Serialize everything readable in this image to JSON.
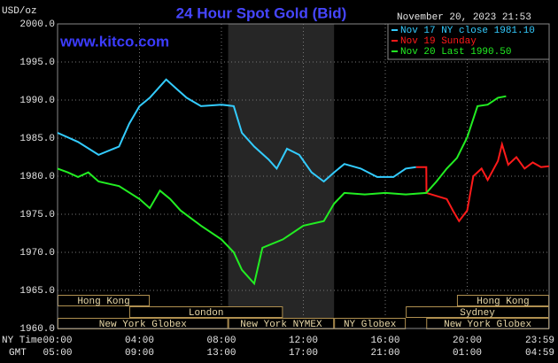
{
  "chart_data": {
    "type": "line",
    "title": "24 Hour Spot Gold (Bid)",
    "subtitle": "www.kitco.com",
    "y_label": "USD/oz",
    "x_label": "NY Time",
    "x2_label": "GMT",
    "timestamp": "November 20, 2023 21:53",
    "ylim": [
      1960,
      2000
    ],
    "yticks": [
      {
        "value": 1960,
        "label": "1960.0"
      },
      {
        "value": 1965,
        "label": "1965.0"
      },
      {
        "value": 1970,
        "label": "1970.0"
      },
      {
        "value": 1975,
        "label": "1975.0"
      },
      {
        "value": 1980,
        "label": "1980.0"
      },
      {
        "value": 1985,
        "label": "1985.0"
      },
      {
        "value": 1990,
        "label": "1990.0"
      },
      {
        "value": 1995,
        "label": "1995.0"
      },
      {
        "value": 2000,
        "label": "2000.0"
      }
    ],
    "xlim": [
      0,
      24
    ],
    "xticks": [
      {
        "value": 0,
        "label": "00:00"
      },
      {
        "value": 4,
        "label": "04:00"
      },
      {
        "value": 8,
        "label": "08:00"
      },
      {
        "value": 12,
        "label": "12:00"
      },
      {
        "value": 16,
        "label": "16:00"
      },
      {
        "value": 20,
        "label": "20:00"
      },
      {
        "value": 23.98,
        "label": "23:59"
      }
    ],
    "x2ticks": [
      {
        "value": 0,
        "label": "05:00"
      },
      {
        "value": 4,
        "label": "09:00"
      },
      {
        "value": 8,
        "label": "13:00"
      },
      {
        "value": 12,
        "label": "17:00"
      },
      {
        "value": 16,
        "label": "21:00"
      },
      {
        "value": 20,
        "label": "01:00"
      },
      {
        "value": 23.98,
        "label": "04:59"
      }
    ],
    "grid": true,
    "highlight": [
      8.33,
      13.5
    ],
    "series": [
      {
        "name": "Nov 17 NY close 1981.10",
        "color": "#33ccff",
        "x": [
          0,
          1,
          2,
          3,
          3.5,
          4,
          4.5,
          5.3,
          5.8,
          6.3,
          7,
          8,
          8.6,
          9,
          9.6,
          10.3,
          10.7,
          11.2,
          11.8,
          12.4,
          13,
          13.5,
          14,
          14.8,
          15.6,
          16.4,
          17,
          17.5
        ],
        "values": [
          1985.7,
          1984.5,
          1982.8,
          1983.9,
          1986.9,
          1989.2,
          1990.3,
          1992.7,
          1991.5,
          1990.3,
          1989.2,
          1989.4,
          1989.2,
          1985.7,
          1983.9,
          1982.2,
          1981.0,
          1983.6,
          1982.8,
          1980.5,
          1979.3,
          1980.5,
          1981.6,
          1981.0,
          1979.9,
          1979.9,
          1981.0,
          1981.2
        ]
      },
      {
        "name": "Nov 19 Sunday",
        "color": "#ff1a1a",
        "x": [
          17.5,
          18,
          18.01,
          19,
          19.3,
          19.6,
          20,
          20.3,
          20.7,
          21,
          21.5,
          21.7,
          22,
          22.4,
          22.8,
          23.2,
          23.6,
          24
        ],
        "values": [
          1981.2,
          1981.2,
          1977.8,
          1977.0,
          1975.5,
          1974.1,
          1975.5,
          1980.0,
          1981.0,
          1979.5,
          1982.0,
          1984.2,
          1981.5,
          1982.5,
          1981.0,
          1981.8,
          1981.2,
          1981.3
        ]
      },
      {
        "name": "Nov 20 Last 1990.50",
        "color": "#22ee22",
        "x": [
          0,
          0.5,
          1,
          1.5,
          2,
          3,
          4,
          4.5,
          5,
          5.5,
          6,
          7,
          8,
          8.6,
          9,
          9.6,
          10,
          11,
          12,
          13,
          13.5,
          14,
          15,
          16,
          17,
          18,
          18.5,
          19,
          19.5,
          20,
          20.5,
          21,
          21.5,
          21.9
        ],
        "values": [
          1981.0,
          1980.5,
          1979.9,
          1980.5,
          1979.3,
          1978.7,
          1977.0,
          1975.8,
          1978.1,
          1977.0,
          1975.5,
          1973.5,
          1971.7,
          1970.0,
          1967.7,
          1965.9,
          1970.6,
          1971.7,
          1973.5,
          1974.1,
          1976.4,
          1977.8,
          1977.6,
          1977.8,
          1977.6,
          1977.8,
          1979.3,
          1981.0,
          1982.4,
          1985.1,
          1989.2,
          1989.4,
          1990.3,
          1990.5
        ]
      }
    ],
    "session_rows": [
      [
        {
          "label": "Hong Kong",
          "start": 0,
          "end": 4.5
        },
        {
          "label": "Hong Kong",
          "start": 19.5,
          "end": 24
        }
      ],
      [
        {
          "label": "London",
          "start": 3.5,
          "end": 11
        },
        {
          "label": "Sydney",
          "start": 17,
          "end": 24
        }
      ],
      [
        {
          "label": "New York Globex",
          "start": 0,
          "end": 8.33
        },
        {
          "label": "New York NYMEX",
          "start": 8.33,
          "end": 13.5
        },
        {
          "label": "NY Globex",
          "start": 13.5,
          "end": 17
        },
        {
          "label": "New York Globex",
          "start": 18,
          "end": 24
        }
      ]
    ]
  }
}
